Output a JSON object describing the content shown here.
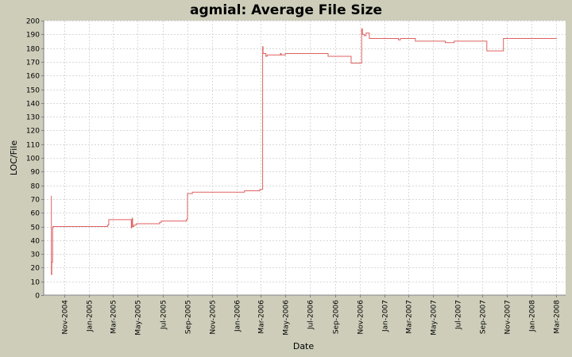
{
  "chart_data": {
    "type": "line",
    "title": "agmial: Average File Size",
    "xlabel": "Date",
    "ylabel": "LOC/File",
    "ylim": [
      0,
      200
    ],
    "yticks": [
      0,
      10,
      20,
      30,
      40,
      50,
      60,
      70,
      80,
      90,
      100,
      110,
      120,
      130,
      140,
      150,
      160,
      170,
      180,
      190,
      200
    ],
    "xlim": [
      "2004-09-10",
      "2008-03-25"
    ],
    "xticks": [
      {
        "date": "2004-11-01",
        "label": "Nov-2004"
      },
      {
        "date": "2005-01-01",
        "label": "Jan-2005"
      },
      {
        "date": "2005-03-01",
        "label": "Mar-2005"
      },
      {
        "date": "2005-05-01",
        "label": "May-2005"
      },
      {
        "date": "2005-07-01",
        "label": "Jul-2005"
      },
      {
        "date": "2005-09-01",
        "label": "Sep-2005"
      },
      {
        "date": "2005-11-01",
        "label": "Nov-2005"
      },
      {
        "date": "2006-01-01",
        "label": "Jan-2006"
      },
      {
        "date": "2006-03-01",
        "label": "Mar-2006"
      },
      {
        "date": "2006-05-01",
        "label": "May-2006"
      },
      {
        "date": "2006-07-01",
        "label": "Jul-2006"
      },
      {
        "date": "2006-09-01",
        "label": "Sep-2006"
      },
      {
        "date": "2006-11-01",
        "label": "Nov-2006"
      },
      {
        "date": "2007-01-01",
        "label": "Jan-2007"
      },
      {
        "date": "2007-03-01",
        "label": "Mar-2007"
      },
      {
        "date": "2007-05-01",
        "label": "May-2007"
      },
      {
        "date": "2007-07-01",
        "label": "Jul-2007"
      },
      {
        "date": "2007-09-01",
        "label": "Sep-2007"
      },
      {
        "date": "2007-11-01",
        "label": "Nov-2007"
      },
      {
        "date": "2008-01-01",
        "label": "Jan-2008"
      },
      {
        "date": "2008-03-01",
        "label": "Mar-2008"
      }
    ],
    "grid": true,
    "series": [
      {
        "color": "#e06060",
        "step": true,
        "points": [
          [
            "2004-09-28",
            72
          ],
          [
            "2004-09-29",
            15
          ],
          [
            "2004-09-30",
            24
          ],
          [
            "2004-10-02",
            49
          ],
          [
            "2004-10-03",
            50
          ],
          [
            "2005-02-15",
            51
          ],
          [
            "2005-02-18",
            55
          ],
          [
            "2005-04-15",
            49
          ],
          [
            "2005-04-16",
            55
          ],
          [
            "2005-04-17",
            56
          ],
          [
            "2005-04-18",
            50
          ],
          [
            "2005-04-21",
            51
          ],
          [
            "2005-04-27",
            52
          ],
          [
            "2005-06-24",
            53
          ],
          [
            "2005-06-28",
            54
          ],
          [
            "2005-08-29",
            55
          ],
          [
            "2005-09-01",
            74
          ],
          [
            "2005-09-13",
            75
          ],
          [
            "2006-01-20",
            76
          ],
          [
            "2006-02-27",
            77
          ],
          [
            "2006-03-06",
            181
          ],
          [
            "2006-03-07",
            176
          ],
          [
            "2006-03-14",
            174
          ],
          [
            "2006-03-17",
            175
          ],
          [
            "2006-04-19",
            176
          ],
          [
            "2006-04-21",
            175
          ],
          [
            "2006-05-01",
            176
          ],
          [
            "2006-08-15",
            174
          ],
          [
            "2006-10-11",
            169
          ],
          [
            "2006-11-06",
            194
          ],
          [
            "2006-11-08",
            190
          ],
          [
            "2006-11-12",
            189
          ],
          [
            "2006-11-17",
            191
          ],
          [
            "2006-11-25",
            187
          ],
          [
            "2007-02-05",
            186
          ],
          [
            "2007-02-10",
            187
          ],
          [
            "2007-03-19",
            185
          ],
          [
            "2007-06-01",
            184
          ],
          [
            "2007-06-23",
            185
          ],
          [
            "2007-09-12",
            178
          ],
          [
            "2007-10-23",
            187
          ],
          [
            "2008-03-03",
            187
          ]
        ]
      }
    ]
  }
}
